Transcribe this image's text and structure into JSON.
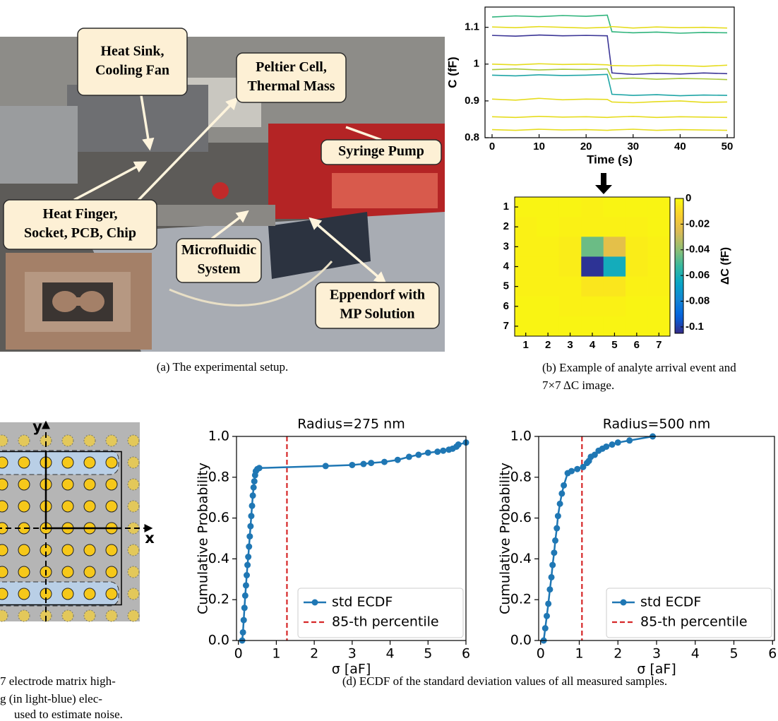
{
  "chart_data": [
    {
      "type": "line",
      "xlabel": "Time (s)",
      "ylabel": "C (fF)",
      "x": [
        0,
        5,
        10,
        15,
        20,
        24.5,
        25.5,
        30,
        35,
        40,
        45,
        50
      ],
      "xlim": [
        -1.5,
        51.5
      ],
      "ylim": [
        0.8,
        1.155
      ],
      "xticks": [
        0,
        10,
        20,
        30,
        40,
        50
      ],
      "yticks": [
        0.8,
        0.9,
        1,
        1.1
      ],
      "series": [
        {
          "color": "#2fb47c",
          "values": [
            1.128,
            1.131,
            1.129,
            1.132,
            1.13,
            1.133,
            1.088,
            1.085,
            1.087,
            1.084,
            1.086,
            1.085
          ]
        },
        {
          "color": "#e6dc1e",
          "values": [
            1.101,
            1.099,
            1.102,
            1.1,
            1.098,
            1.1,
            1.102,
            1.098,
            1.101,
            1.099,
            1.1,
            1.098
          ]
        },
        {
          "color": "#3b3596",
          "values": [
            1.078,
            1.076,
            1.079,
            1.077,
            1.078,
            1.077,
            0.976,
            0.972,
            0.975,
            0.973,
            0.976,
            0.974
          ]
        },
        {
          "color": "#e6dc1e",
          "values": [
            1.0,
            0.998,
            1.001,
            0.999,
            1.0,
            0.998,
            0.996,
            0.995,
            0.997,
            0.996,
            0.994,
            0.997
          ]
        },
        {
          "color": "#a9c83a",
          "values": [
            0.985,
            0.987,
            0.984,
            0.986,
            0.985,
            0.987,
            0.96,
            0.962,
            0.959,
            0.961,
            0.96,
            0.958
          ]
        },
        {
          "color": "#1fa5a6",
          "values": [
            0.97,
            0.968,
            0.971,
            0.969,
            0.97,
            0.972,
            0.918,
            0.915,
            0.917,
            0.914,
            0.916,
            0.915
          ]
        },
        {
          "color": "#e6dc1e",
          "values": [
            0.905,
            0.902,
            0.907,
            0.903,
            0.905,
            0.904,
            0.897,
            0.895,
            0.898,
            0.9,
            0.896,
            0.897
          ]
        },
        {
          "color": "#e6dc1e",
          "values": [
            0.857,
            0.855,
            0.858,
            0.856,
            0.857,
            0.855,
            0.856,
            0.858,
            0.855,
            0.857,
            0.856,
            0.855
          ]
        },
        {
          "color": "#e6dc1e",
          "values": [
            0.822,
            0.82,
            0.823,
            0.821,
            0.822,
            0.82,
            0.821,
            0.823,
            0.82,
            0.822,
            0.821,
            0.82
          ]
        }
      ]
    },
    {
      "type": "heatmap",
      "colormap": "parula",
      "xlim": [
        0.5,
        7.5
      ],
      "ylim": [
        7.5,
        0.5
      ],
      "xticks": [
        1,
        2,
        3,
        4,
        5,
        6,
        7
      ],
      "yticks": [
        1,
        2,
        3,
        4,
        5,
        6,
        7
      ],
      "z": [
        [
          -0.002,
          -0.002,
          -0.002,
          -0.003,
          -0.002,
          -0.002,
          -0.002
        ],
        [
          -0.003,
          -0.002,
          -0.003,
          -0.003,
          -0.003,
          -0.003,
          -0.002
        ],
        [
          -0.003,
          -0.003,
          -0.004,
          -0.045,
          -0.022,
          -0.004,
          -0.003
        ],
        [
          -0.003,
          -0.003,
          -0.004,
          -0.103,
          -0.062,
          -0.004,
          -0.003
        ],
        [
          -0.003,
          -0.003,
          -0.003,
          -0.006,
          -0.006,
          -0.003,
          -0.003
        ],
        [
          -0.002,
          -0.002,
          -0.003,
          -0.003,
          -0.003,
          -0.002,
          -0.002
        ],
        [
          -0.002,
          -0.002,
          -0.002,
          -0.002,
          -0.002,
          -0.002,
          -0.002
        ]
      ],
      "zlim": [
        -0.105,
        0
      ],
      "colorbar_ticks": [
        0,
        -0.02,
        -0.04,
        -0.06,
        -0.08,
        -0.1
      ],
      "colorbar_label": "ΔC (fF)"
    },
    {
      "type": "line",
      "title": "Radius=275 nm",
      "xlabel": "σ [aF]",
      "ylabel": "Cumulative Probability",
      "xlim": [
        -0.05,
        6
      ],
      "ylim": [
        0,
        1
      ],
      "xticks": [
        0,
        1,
        2,
        3,
        4,
        5,
        6
      ],
      "yticks": [
        {
          "value": 0,
          "label": "0.0"
        },
        0.2,
        0.4,
        0.6,
        0.8,
        {
          "value": 1,
          "label": "1.0"
        }
      ],
      "legend": "lower right",
      "series": [
        {
          "name": "std ECDF",
          "color": "#1f77b4",
          "marker": "o",
          "x": [
            0.1,
            0.12,
            0.14,
            0.16,
            0.18,
            0.2,
            0.22,
            0.24,
            0.26,
            0.28,
            0.3,
            0.32,
            0.34,
            0.36,
            0.38,
            0.4,
            0.42,
            0.44,
            0.46,
            0.5,
            0.55,
            2.3,
            3.0,
            3.3,
            3.5,
            3.85,
            4.2,
            4.5,
            4.75,
            5.0,
            5.25,
            5.4,
            5.55,
            5.65,
            5.75,
            5.8,
            6.0
          ],
          "values": [
            0,
            0.04,
            0.1,
            0.16,
            0.22,
            0.27,
            0.32,
            0.37,
            0.41,
            0.46,
            0.51,
            0.56,
            0.61,
            0.66,
            0.71,
            0.75,
            0.78,
            0.81,
            0.83,
            0.84,
            0.845,
            0.855,
            0.86,
            0.865,
            0.87,
            0.875,
            0.885,
            0.9,
            0.91,
            0.92,
            0.925,
            0.93,
            0.935,
            0.94,
            0.95,
            0.96,
            0.97
          ]
        }
      ],
      "vlines": [
        {
          "name": "85-th percentile",
          "x": 1.28,
          "color": "#d62728"
        }
      ]
    },
    {
      "type": "line",
      "title": "Radius=500 nm",
      "xlabel": "σ [aF]",
      "ylabel": "Cumulative Probability",
      "xlim": [
        -0.05,
        6.05
      ],
      "ylim": [
        0,
        1
      ],
      "xticks": [
        0,
        1,
        2,
        3,
        4,
        5,
        6
      ],
      "yticks": [
        {
          "value": 0,
          "label": "0.0"
        },
        0.2,
        0.4,
        0.6,
        0.8,
        {
          "value": 1,
          "label": "1.0"
        }
      ],
      "legend": "lower right",
      "series": [
        {
          "name": "std ECDF",
          "color": "#1f77b4",
          "marker": "o",
          "x": [
            0.08,
            0.12,
            0.16,
            0.2,
            0.24,
            0.28,
            0.31,
            0.35,
            0.38,
            0.42,
            0.45,
            0.5,
            0.55,
            0.6,
            0.7,
            0.8,
            0.95,
            1.1,
            1.2,
            1.25,
            1.3,
            1.4,
            1.5,
            1.6,
            1.7,
            1.85,
            2.0,
            2.3,
            2.9
          ],
          "values": [
            0,
            0.06,
            0.12,
            0.18,
            0.25,
            0.31,
            0.37,
            0.43,
            0.49,
            0.55,
            0.61,
            0.67,
            0.72,
            0.76,
            0.82,
            0.83,
            0.84,
            0.85,
            0.87,
            0.88,
            0.9,
            0.91,
            0.93,
            0.94,
            0.95,
            0.96,
            0.97,
            0.98,
            1.0
          ]
        }
      ],
      "vlines": [
        {
          "name": "85-th percentile",
          "x": 1.07,
          "color": "#d62728"
        }
      ]
    }
  ],
  "figure": {
    "photo_labels": [
      {
        "lines": [
          "Heat Sink,",
          "Cooling Fan"
        ]
      },
      {
        "lines": [
          "Peltier Cell,",
          "Thermal Mass"
        ]
      },
      {
        "lines": [
          "Syringe Pump"
        ]
      },
      {
        "lines": [
          "Heat Finger,",
          "Socket, PCB, Chip"
        ]
      },
      {
        "lines": [
          "Microfluidic",
          "System"
        ]
      },
      {
        "lines": [
          "Eppendorf with",
          "MP Solution"
        ]
      }
    ],
    "diagram": {
      "x_label": "x",
      "y_label": "y"
    },
    "captions": {
      "a": "(a) The experimental setup.",
      "b": [
        "(b) Example of analyte arrival event and",
        "7×7 ΔC image."
      ],
      "c": [
        "7 electrode matrix high-",
        "g (in light-blue) elec-",
        "used to estimate noise."
      ],
      "d": "(d) ECDF of the standard deviation values of all measured samples."
    }
  }
}
